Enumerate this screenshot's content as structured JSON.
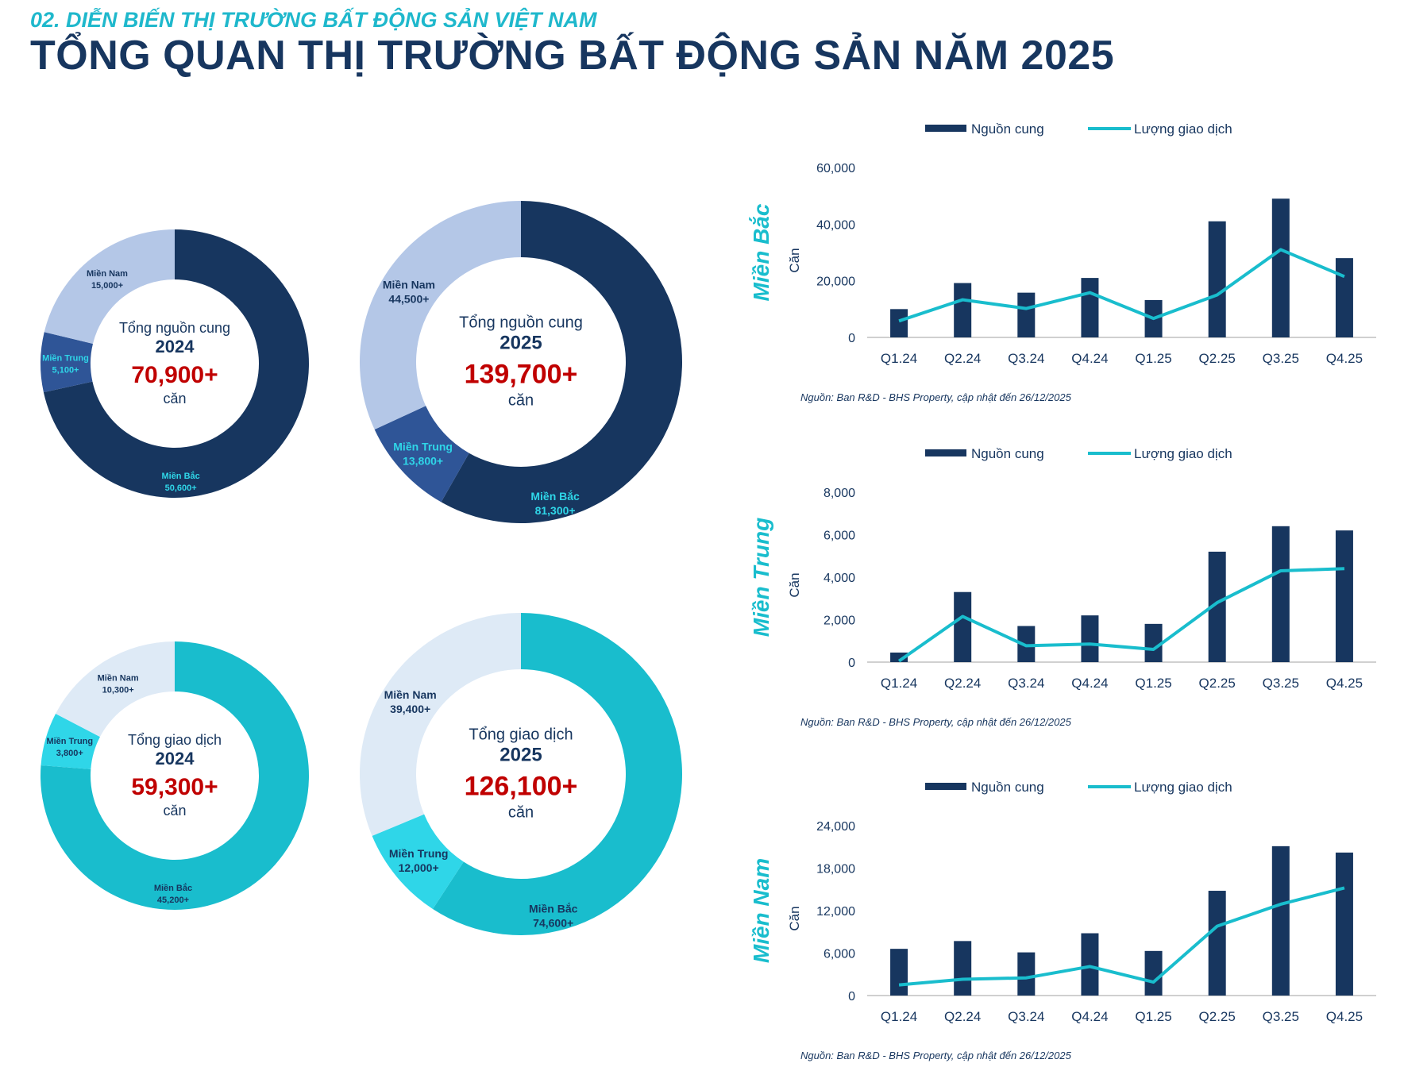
{
  "header": {
    "subtitle": "02. DIỄN BIẾN THỊ TRƯỜNG BẤT ĐỘNG SẢN VIỆT NAM",
    "title": "TỔNG QUAN THỊ TRƯỜNG BẤT ĐỘNG SẢN NĂM 2025"
  },
  "colors": {
    "navy": "#17365f",
    "mid_blue": "#2f5597",
    "light_blue": "#b4c7e7",
    "teal": "#19bdcd",
    "cyan": "#2fd6e8",
    "pale": "#deeaf6",
    "red": "#c00000"
  },
  "donuts": [
    {
      "label": "Tổng nguồn cung",
      "year": "2024",
      "total": "70,900+",
      "unit": "căn",
      "slices": [
        {
          "name": "Miền Bắc",
          "label": "50,600+",
          "value": 50600,
          "color": "#17365f"
        },
        {
          "name": "Miền Trung",
          "label": "5,100+",
          "value": 5100,
          "color": "#2f5597"
        },
        {
          "name": "Miền Nam",
          "label": "15,000+",
          "value": 15000,
          "color": "#b4c7e7"
        }
      ]
    },
    {
      "label": "Tổng nguồn cung",
      "year": "2025",
      "total": "139,700+",
      "unit": "căn",
      "slices": [
        {
          "name": "Miền Bắc",
          "label": "81,300+",
          "value": 81300,
          "color": "#17365f"
        },
        {
          "name": "Miền Trung",
          "label": "13,800+",
          "value": 13800,
          "color": "#2f5597"
        },
        {
          "name": "Miền Nam",
          "label": "44,500+",
          "value": 44500,
          "color": "#b4c7e7"
        }
      ]
    },
    {
      "label": "Tổng giao dịch",
      "year": "2024",
      "total": "59,300+",
      "unit": "căn",
      "slices": [
        {
          "name": "Miền Bắc",
          "label": "45,200+",
          "value": 45200,
          "color": "#19bdcd"
        },
        {
          "name": "Miền Trung",
          "label": "3,800+",
          "value": 3800,
          "color": "#2fd6e8"
        },
        {
          "name": "Miền Nam",
          "label": "10,300+",
          "value": 10300,
          "color": "#deeaf6"
        }
      ]
    },
    {
      "label": "Tổng giao dịch",
      "year": "2025",
      "total": "126,100+",
      "unit": "căn",
      "slices": [
        {
          "name": "Miền Bắc",
          "label": "74,600+",
          "value": 74600,
          "color": "#19bdcd"
        },
        {
          "name": "Miền Trung",
          "label": "12,000+",
          "value": 12000,
          "color": "#2fd6e8"
        },
        {
          "name": "Miền Nam",
          "label": "39,400+",
          "value": 39400,
          "color": "#deeaf6"
        }
      ]
    }
  ],
  "chart_data": [
    {
      "type": "bar+line",
      "region": "Miền Bắc",
      "ylabel": "Căn",
      "ylim": [
        0,
        60000
      ],
      "yticks": [
        "0",
        "20,000",
        "40,000",
        "60,000"
      ],
      "categories": [
        "Q1.24",
        "Q2.24",
        "Q3.24",
        "Q4.24",
        "Q1.25",
        "Q2.25",
        "Q3.25",
        "Q4.25"
      ],
      "series": [
        {
          "name": "Nguồn cung",
          "type": "bar",
          "values": [
            10000,
            19200,
            15800,
            21000,
            13200,
            41000,
            49000,
            28000
          ]
        },
        {
          "name": "Lượng giao dịch",
          "type": "line",
          "values": [
            5800,
            13300,
            10200,
            15800,
            6700,
            15000,
            31000,
            21500
          ]
        }
      ],
      "legend": "top",
      "source": "Nguồn: Ban R&D - BHS Property, cập nhật đến 26/12/2025"
    },
    {
      "type": "bar+line",
      "region": "Miền Trung",
      "ylabel": "Căn",
      "ylim": [
        0,
        8000
      ],
      "yticks": [
        "0",
        "2,000",
        "4,000",
        "6,000",
        "8,000"
      ],
      "categories": [
        "Q1.24",
        "Q2.24",
        "Q3.24",
        "Q4.24",
        "Q1.25",
        "Q2.25",
        "Q3.25",
        "Q4.25"
      ],
      "series": [
        {
          "name": "Nguồn cung",
          "type": "bar",
          "values": [
            450,
            3300,
            1700,
            2200,
            1800,
            5200,
            6400,
            6200
          ]
        },
        {
          "name": "Lượng giao dịch",
          "type": "line",
          "values": [
            50,
            2150,
            770,
            850,
            600,
            2800,
            4300,
            4400
          ]
        }
      ],
      "legend": "top",
      "source": "Nguồn: Ban R&D - BHS Property, cập nhật đến 26/12/2025"
    },
    {
      "type": "bar+line",
      "region": "Miền Nam",
      "ylabel": "Căn",
      "ylim": [
        0,
        24000
      ],
      "yticks": [
        "0",
        "6,000",
        "12,000",
        "18,000",
        "24,000"
      ],
      "categories": [
        "Q1.24",
        "Q2.24",
        "Q3.24",
        "Q4.24",
        "Q1.25",
        "Q2.25",
        "Q3.25",
        "Q4.25"
      ],
      "series": [
        {
          "name": "Nguồn cung",
          "type": "bar",
          "values": [
            6600,
            7700,
            6100,
            8800,
            6300,
            14800,
            21100,
            20200
          ]
        },
        {
          "name": "Lượng giao dịch",
          "type": "line",
          "values": [
            1500,
            2300,
            2500,
            4100,
            1900,
            9800,
            12900,
            15200
          ]
        }
      ],
      "legend": "top",
      "source": "Nguồn: Ban R&D - BHS Property, cập nhật đến 26/12/2025"
    }
  ]
}
